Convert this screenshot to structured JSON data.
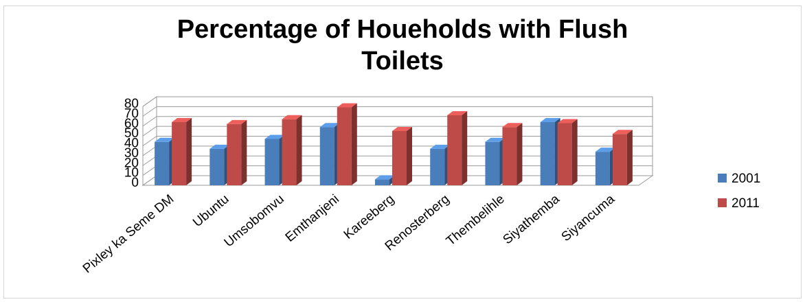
{
  "chart_data": {
    "type": "bar",
    "title_lines": [
      "Percentage of Houeholds with Flush",
      "Toilets"
    ],
    "categories": [
      "Pixley ka Seme DM",
      "Ubuntu",
      "Umsobomvu",
      "Emthanjeni",
      "Kareeberg",
      "Renosterberg",
      "Thembelihle",
      "Siyathemba",
      "Siyancuma"
    ],
    "series": [
      {
        "name": "2001",
        "color": "#4a7ebb",
        "values": [
          44,
          37,
          47,
          59,
          6,
          37,
          44,
          64,
          34
        ]
      },
      {
        "name": "2011",
        "color": "#be4b48",
        "values": [
          64,
          62,
          67,
          79,
          55,
          71,
          59,
          63,
          52
        ]
      }
    ],
    "ylim": [
      0,
      80
    ],
    "yticks": [
      0,
      10,
      20,
      30,
      40,
      50,
      60,
      70,
      80
    ],
    "grid": true,
    "legend_position": "right",
    "style": "3d-clustered-column"
  }
}
